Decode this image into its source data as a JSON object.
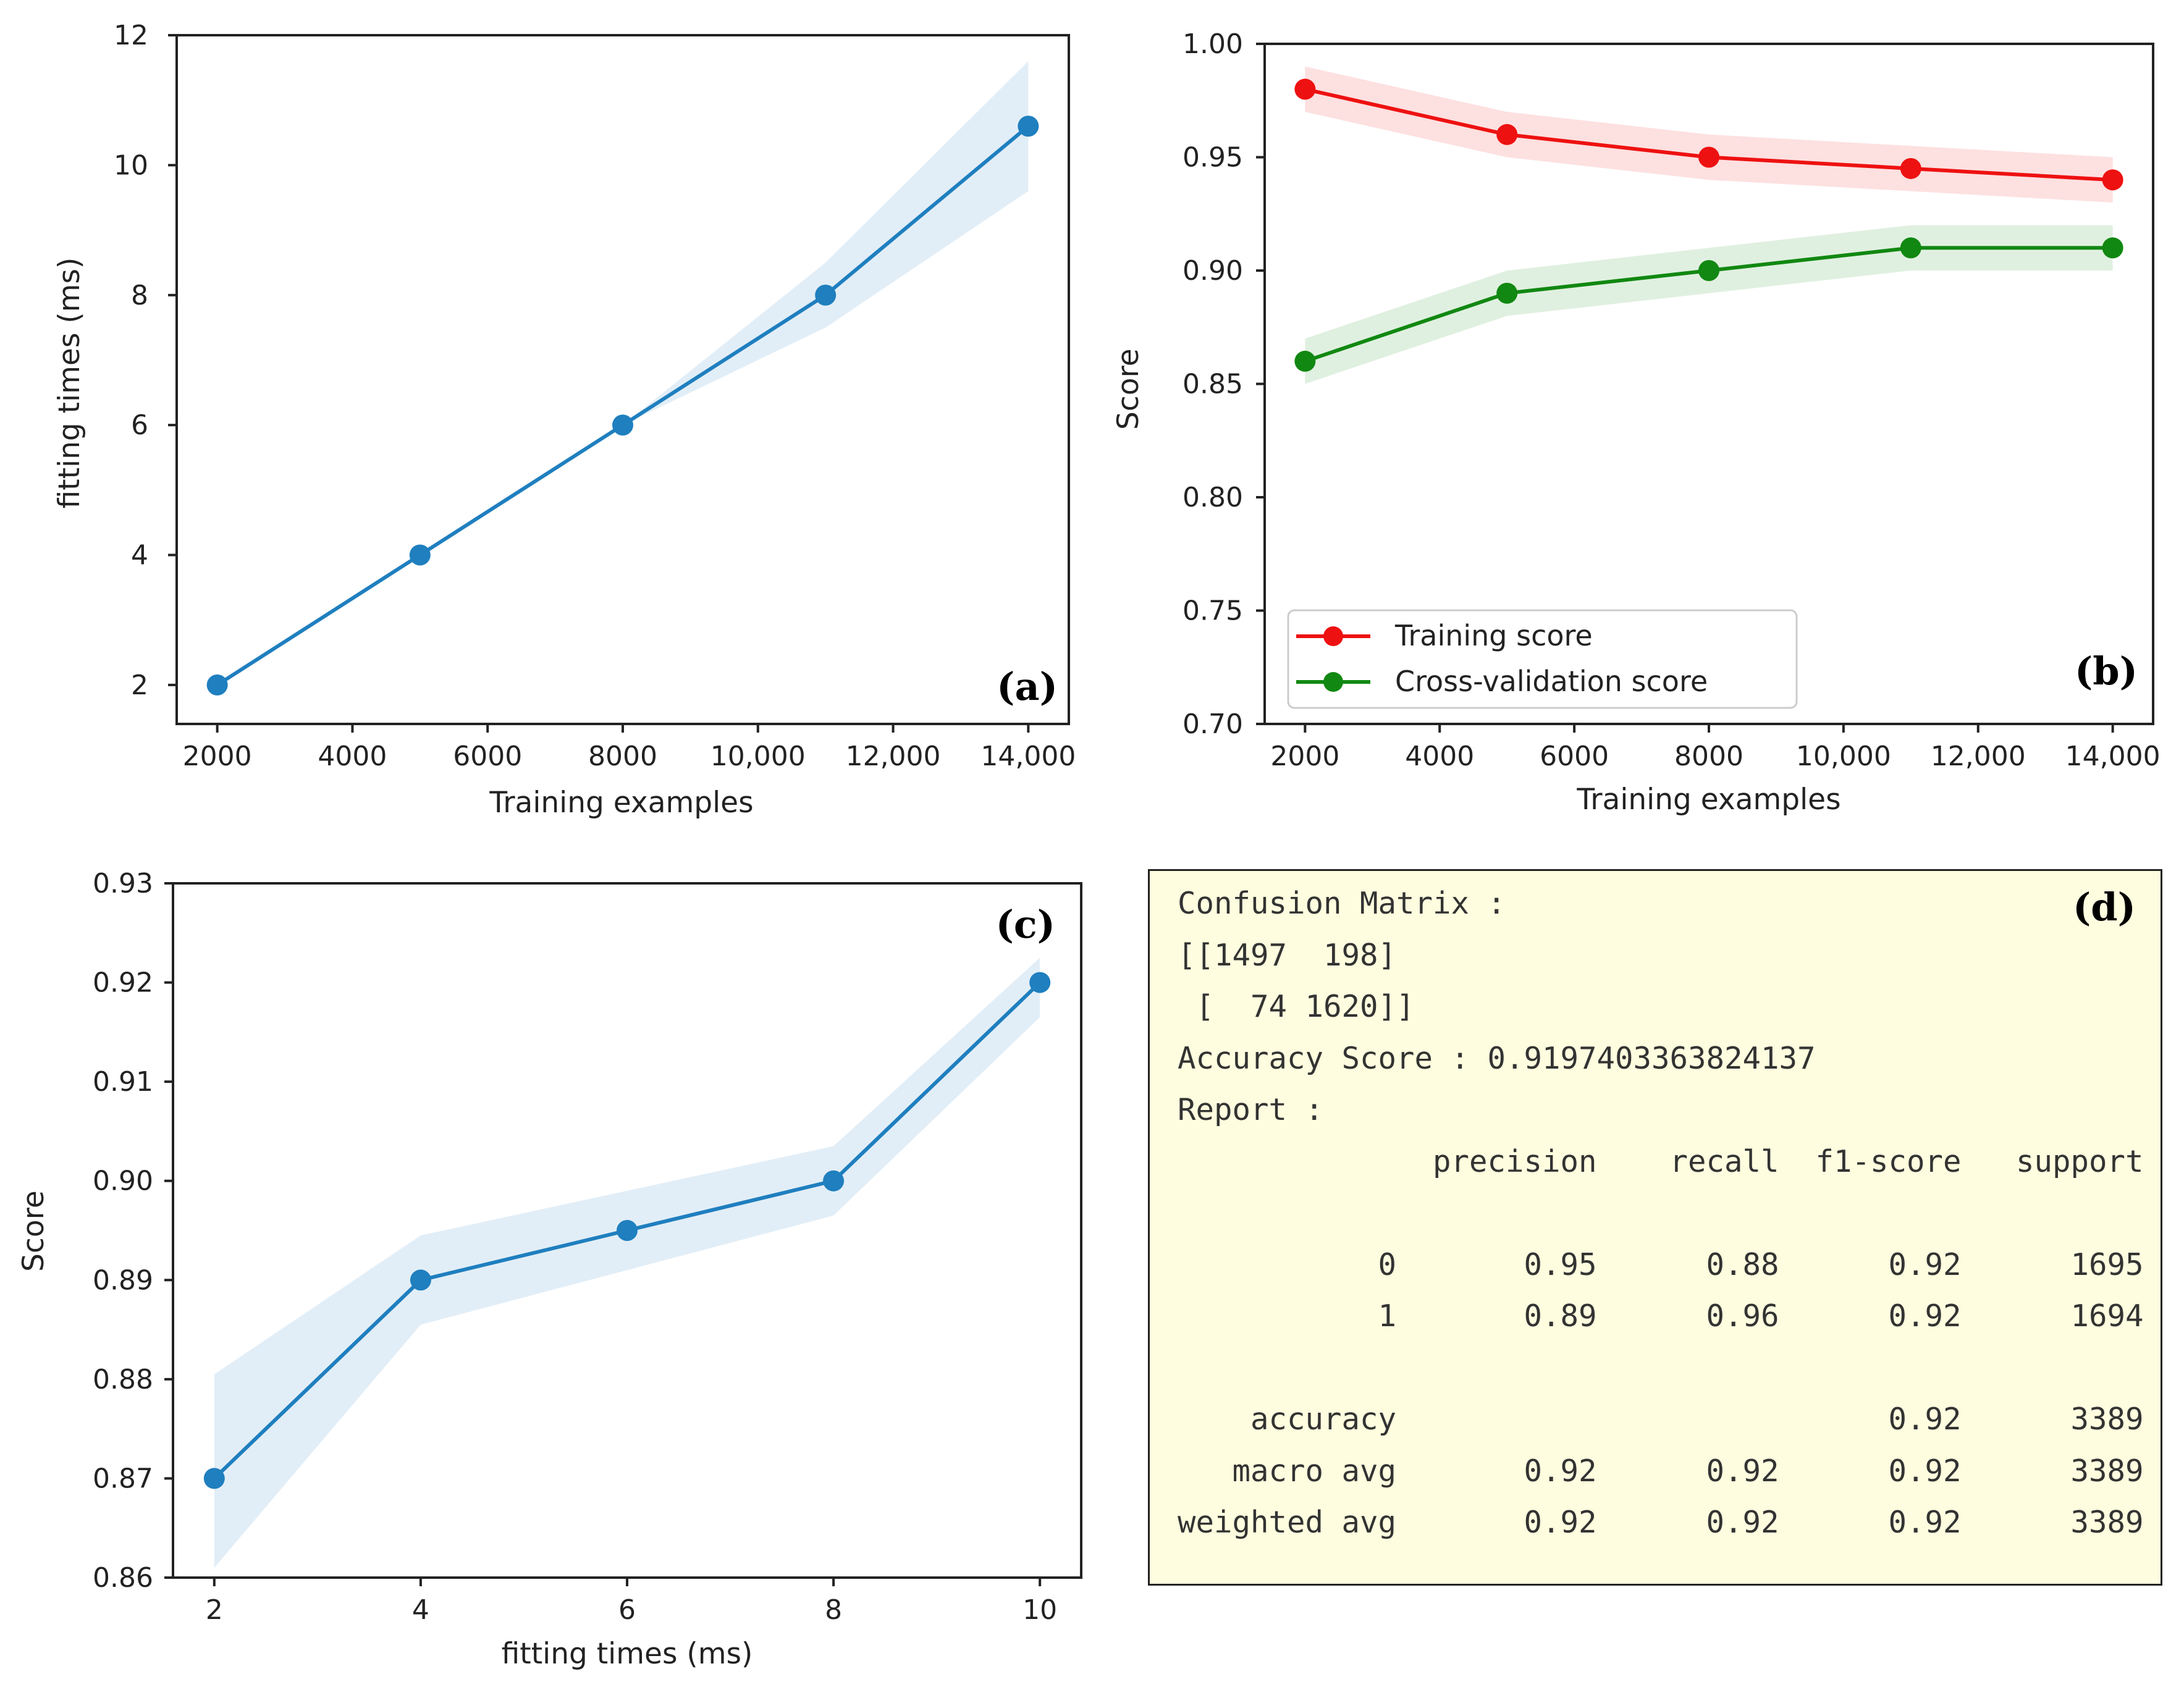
{
  "chart_data": [
    {
      "panel": "(a)",
      "type": "line",
      "x": [
        2000,
        5000,
        8000,
        11000,
        14000
      ],
      "series": [
        {
          "values": [
            2,
            4,
            6,
            8,
            10.6
          ],
          "lower": [
            2,
            4,
            6,
            7.5,
            9.6
          ],
          "upper": [
            2,
            4,
            6,
            8.5,
            11.6
          ],
          "color": "#1f7fbf"
        }
      ],
      "xlabel": "Training examples",
      "ylabel": "fitting times (ms)",
      "xlim": [
        1400,
        14600
      ],
      "ylim": [
        1.4,
        12.0
      ],
      "xticks": [
        2000,
        4000,
        6000,
        8000,
        10000,
        12000,
        14000
      ],
      "xtick_labels": [
        "2000",
        "4000",
        "6000",
        "8000",
        "10,000",
        "12,000",
        "14,000"
      ],
      "yticks": [
        2,
        4,
        6,
        8,
        10,
        12
      ],
      "ytick_labels": [
        "2",
        "4",
        "6",
        "8",
        "10",
        "12"
      ],
      "grid": false
    },
    {
      "panel": "(b)",
      "type": "line",
      "x": [
        2000,
        5000,
        8000,
        11000,
        14000
      ],
      "series": [
        {
          "name": "Training score",
          "values": [
            0.98,
            0.96,
            0.95,
            0.945,
            0.94
          ],
          "lower": [
            0.97,
            0.95,
            0.94,
            0.935,
            0.93
          ],
          "upper": [
            0.99,
            0.97,
            0.96,
            0.955,
            0.95
          ],
          "color": "#ee1111"
        },
        {
          "name": "Cross-validation score",
          "values": [
            0.86,
            0.89,
            0.9,
            0.91,
            0.91
          ],
          "lower": [
            0.85,
            0.88,
            0.89,
            0.9,
            0.9
          ],
          "upper": [
            0.87,
            0.9,
            0.91,
            0.92,
            0.92
          ],
          "color": "#118811"
        }
      ],
      "xlabel": "Training examples",
      "ylabel": "Score",
      "xlim": [
        1400,
        14600
      ],
      "ylim": [
        0.7,
        1.0
      ],
      "xticks": [
        2000,
        4000,
        6000,
        8000,
        10000,
        12000,
        14000
      ],
      "xtick_labels": [
        "2000",
        "4000",
        "6000",
        "8000",
        "10,000",
        "12,000",
        "14,000"
      ],
      "yticks": [
        0.7,
        0.75,
        0.8,
        0.85,
        0.9,
        0.95,
        1.0
      ],
      "ytick_labels": [
        "0.70",
        "0.75",
        "0.80",
        "0.85",
        "0.90",
        "0.95",
        "1.00"
      ],
      "legend": "lower-left",
      "grid": false
    },
    {
      "panel": "(c)",
      "type": "line",
      "x": [
        2,
        4,
        6,
        8,
        10
      ],
      "series": [
        {
          "values": [
            0.87,
            0.89,
            0.895,
            0.9,
            0.92
          ],
          "lower": [
            0.861,
            0.8855,
            0.891,
            0.8965,
            0.9165
          ],
          "upper": [
            0.8805,
            0.8945,
            0.899,
            0.9035,
            0.9225
          ],
          "color": "#1f7fbf"
        }
      ],
      "xlabel": "fitting times (ms)",
      "ylabel": "Score",
      "xlim": [
        1.6,
        10.4
      ],
      "ylim": [
        0.86,
        0.93
      ],
      "xticks": [
        2,
        4,
        6,
        8,
        10
      ],
      "xtick_labels": [
        "2",
        "4",
        "6",
        "8",
        "10"
      ],
      "yticks": [
        0.86,
        0.87,
        0.88,
        0.89,
        0.9,
        0.91,
        0.92,
        0.93
      ],
      "ytick_labels": [
        "0.86",
        "0.87",
        "0.88",
        "0.89",
        "0.90",
        "0.91",
        "0.92",
        "0.93"
      ],
      "grid": false
    }
  ],
  "report": {
    "label": "(d)",
    "lines": [
      "Confusion Matrix :",
      "[[1497  198]",
      " [  74 1620]]",
      "Accuracy Score : 0.9197403363824137",
      "Report :",
      "              precision    recall  f1-score   support",
      "",
      "           0       0.95      0.88      0.92      1695",
      "           1       0.89      0.96      0.92      1694",
      "",
      "    accuracy                           0.92      3389",
      "   macro avg       0.92      0.92      0.92      3389",
      "weighted avg       0.92      0.92      0.92      3389"
    ]
  }
}
